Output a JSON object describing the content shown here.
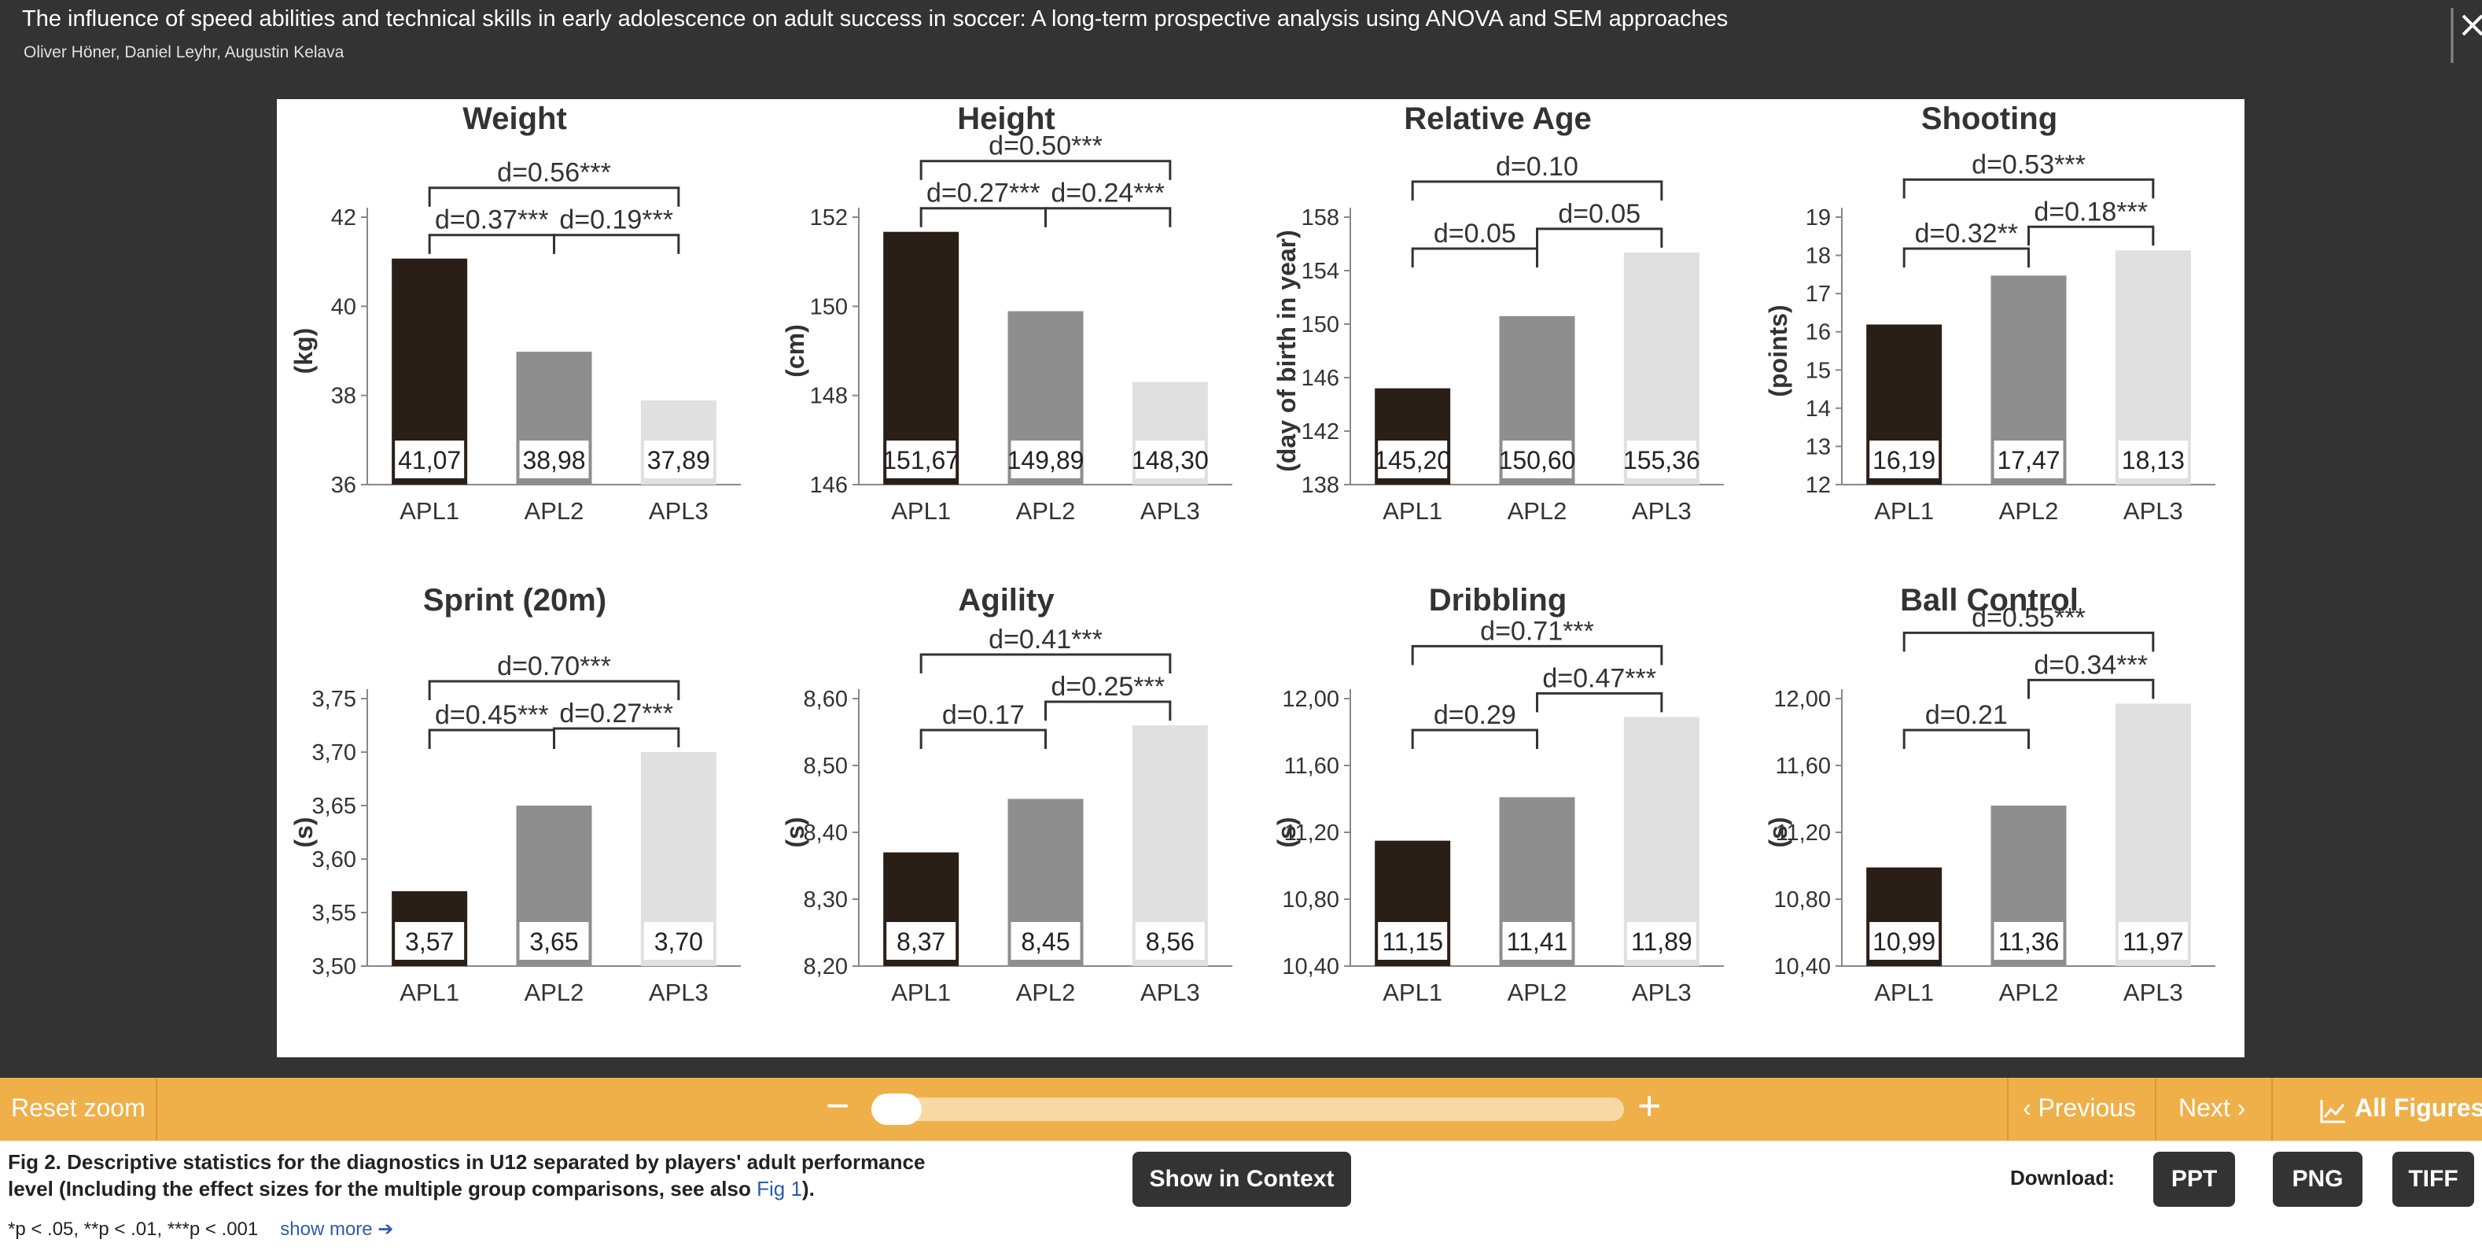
{
  "header": {
    "title": "The influence of speed abilities and technical skills in early adolescence on adult success in soccer: A long-term prospective analysis using ANOVA and SEM approaches",
    "authors": "Oliver Höner,  Daniel Leyhr,  Augustin Kelava"
  },
  "toolbar": {
    "reset_zoom": "Reset zoom",
    "zoom_out": "−",
    "zoom_in": "+",
    "previous": "‹ Previous",
    "next": "Next ›",
    "all_figures": "All Figures",
    "zoom_level": 0
  },
  "footer": {
    "caption": "Fig 2. Descriptive statistics for the diagnostics in U12 separated by players' adult performance level (Including the effect sizes for the multiple group comparisons, see also ",
    "caption_link": "Fig 1",
    "caption_end": ").",
    "footnote": "*p < .05, **p < .01, ***p < .001",
    "show_more": "show more ➔",
    "show_in_context": "Show in Context",
    "download_label": "Download:",
    "download_ppt": "PPT",
    "download_png": "PNG",
    "download_tiff": "TIFF"
  },
  "colors": {
    "APL1": "#2a1f17",
    "APL2": "#8e8e8e",
    "APL3": "#e0e0e0",
    "toolbar": "#efb04a",
    "background": "#333333"
  },
  "chart_data": [
    {
      "type": "bar",
      "title": "Weight",
      "ylabel": "(kg)",
      "categories": [
        "APL1",
        "APL2",
        "APL3"
      ],
      "values": [
        41.07,
        38.98,
        37.89
      ],
      "value_labels": [
        "41,07",
        "38,98",
        "37,89"
      ],
      "ylim": [
        36,
        42
      ],
      "yticks": [
        "36",
        "38",
        "40",
        "42"
      ],
      "effects": [
        {
          "from": "APL1",
          "to": "APL2",
          "label": "d=0.37***"
        },
        {
          "from": "APL2",
          "to": "APL3",
          "label": "d=0.19***"
        },
        {
          "from": "APL1",
          "to": "APL3",
          "label": "d=0.56***"
        }
      ]
    },
    {
      "type": "bar",
      "title": "Height",
      "ylabel": "(cm)",
      "categories": [
        "APL1",
        "APL2",
        "APL3"
      ],
      "values": [
        151.67,
        149.89,
        148.3
      ],
      "value_labels": [
        "151,67",
        "149,89",
        "148,30"
      ],
      "ylim": [
        146,
        152
      ],
      "yticks": [
        "146",
        "148",
        "150",
        "152"
      ],
      "effects": [
        {
          "from": "APL1",
          "to": "APL2",
          "label": "d=0.27***"
        },
        {
          "from": "APL2",
          "to": "APL3",
          "label": "d=0.24***"
        },
        {
          "from": "APL1",
          "to": "APL3",
          "label": "d=0.50***"
        }
      ]
    },
    {
      "type": "bar",
      "title": "Relative Age",
      "ylabel": "(day of birth in year)",
      "categories": [
        "APL1",
        "APL2",
        "APL3"
      ],
      "values": [
        145.2,
        150.6,
        155.36
      ],
      "value_labels": [
        "145,20",
        "150,60",
        "155,36"
      ],
      "ylim": [
        138,
        158
      ],
      "yticks": [
        "138",
        "142",
        "146",
        "150",
        "154",
        "158"
      ],
      "effects": [
        {
          "from": "APL1",
          "to": "APL2",
          "label": "d=0.05"
        },
        {
          "from": "APL2",
          "to": "APL3",
          "label": "d=0.05"
        },
        {
          "from": "APL1",
          "to": "APL3",
          "label": "d=0.10"
        }
      ]
    },
    {
      "type": "bar",
      "title": "Shooting",
      "ylabel": "(points)",
      "categories": [
        "APL1",
        "APL2",
        "APL3"
      ],
      "values": [
        16.19,
        17.47,
        18.13
      ],
      "value_labels": [
        "16,19",
        "17,47",
        "18,13"
      ],
      "ylim": [
        12,
        19
      ],
      "yticks": [
        "12",
        "13",
        "14",
        "15",
        "16",
        "17",
        "18",
        "19"
      ],
      "effects": [
        {
          "from": "APL1",
          "to": "APL2",
          "label": "d=0.32**"
        },
        {
          "from": "APL2",
          "to": "APL3",
          "label": "d=0.18***"
        },
        {
          "from": "APL1",
          "to": "APL3",
          "label": "d=0.53***"
        }
      ]
    },
    {
      "type": "bar",
      "title": "Sprint (20m)",
      "ylabel": "(s)",
      "categories": [
        "APL1",
        "APL2",
        "APL3"
      ],
      "values": [
        3.57,
        3.65,
        3.7
      ],
      "value_labels": [
        "3,57",
        "3,65",
        "3,70"
      ],
      "ylim": [
        3.5,
        3.75
      ],
      "yticks": [
        "3,50",
        "3,55",
        "3,60",
        "3,65",
        "3,70",
        "3,75"
      ],
      "effects": [
        {
          "from": "APL1",
          "to": "APL2",
          "label": "d=0.45***"
        },
        {
          "from": "APL2",
          "to": "APL3",
          "label": "d=0.27***"
        },
        {
          "from": "APL1",
          "to": "APL3",
          "label": "d=0.70***"
        }
      ]
    },
    {
      "type": "bar",
      "title": "Agility",
      "ylabel": "(s)",
      "categories": [
        "APL1",
        "APL2",
        "APL3"
      ],
      "values": [
        8.37,
        8.45,
        8.56
      ],
      "value_labels": [
        "8,37",
        "8,45",
        "8,56"
      ],
      "ylim": [
        8.2,
        8.6
      ],
      "yticks": [
        "8,20",
        "8,30",
        "8,40",
        "8,50",
        "8,60"
      ],
      "effects": [
        {
          "from": "APL1",
          "to": "APL2",
          "label": "d=0.17"
        },
        {
          "from": "APL2",
          "to": "APL3",
          "label": "d=0.25***"
        },
        {
          "from": "APL1",
          "to": "APL3",
          "label": "d=0.41***"
        }
      ]
    },
    {
      "type": "bar",
      "title": "Dribbling",
      "ylabel": "(s)",
      "categories": [
        "APL1",
        "APL2",
        "APL3"
      ],
      "values": [
        11.15,
        11.41,
        11.89
      ],
      "value_labels": [
        "11,15",
        "11,41",
        "11,89"
      ],
      "ylim": [
        10.4,
        12.0
      ],
      "yticks": [
        "10,40",
        "10,80",
        "11,20",
        "11,60",
        "12,00"
      ],
      "effects": [
        {
          "from": "APL1",
          "to": "APL2",
          "label": "d=0.29"
        },
        {
          "from": "APL2",
          "to": "APL3",
          "label": "d=0.47***"
        },
        {
          "from": "APL1",
          "to": "APL3",
          "label": "d=0.71***"
        }
      ]
    },
    {
      "type": "bar",
      "title": "Ball Control",
      "ylabel": "(s)",
      "categories": [
        "APL1",
        "APL2",
        "APL3"
      ],
      "values": [
        10.99,
        11.36,
        11.97
      ],
      "value_labels": [
        "10,99",
        "11,36",
        "11,97"
      ],
      "ylim": [
        10.4,
        12.0
      ],
      "yticks": [
        "10,40",
        "10,80",
        "11,20",
        "11,60",
        "12,00"
      ],
      "effects": [
        {
          "from": "APL1",
          "to": "APL2",
          "label": "d=0.21"
        },
        {
          "from": "APL2",
          "to": "APL3",
          "label": "d=0.34***"
        },
        {
          "from": "APL1",
          "to": "APL3",
          "label": "d=0.55***"
        }
      ]
    }
  ]
}
